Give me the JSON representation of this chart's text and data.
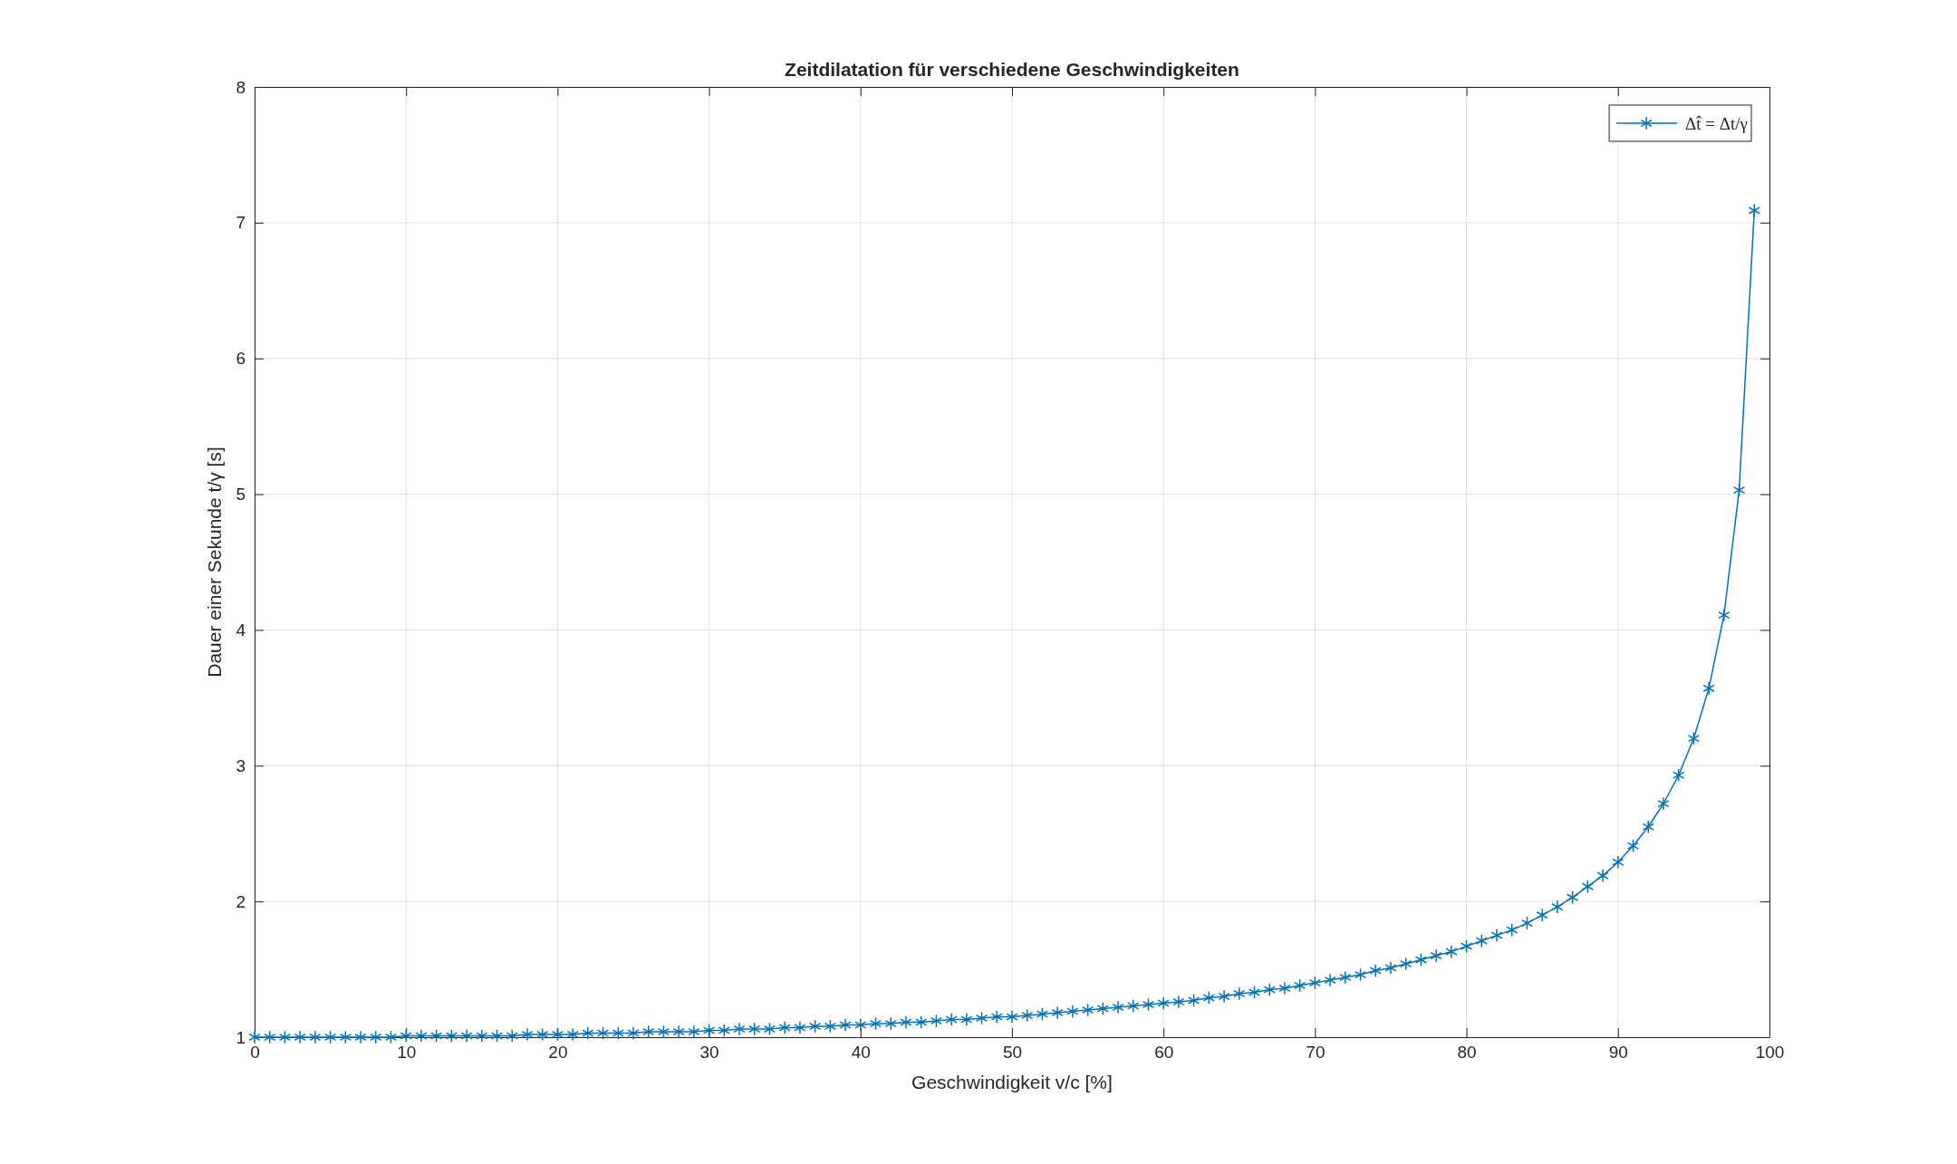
{
  "chart_data": {
    "type": "line",
    "title": "Zeitdilatation für verschiedene Geschwindigkeiten",
    "xlabel": "Geschwindigkeit v/c [%]",
    "ylabel": "Dauer einer Sekunde t/γ [s]",
    "x": [
      0,
      1,
      2,
      3,
      4,
      5,
      6,
      7,
      8,
      9,
      10,
      11,
      12,
      13,
      14,
      15,
      16,
      17,
      18,
      19,
      20,
      21,
      22,
      23,
      24,
      25,
      26,
      27,
      28,
      29,
      30,
      31,
      32,
      33,
      34,
      35,
      36,
      37,
      38,
      39,
      40,
      41,
      42,
      43,
      44,
      45,
      46,
      47,
      48,
      49,
      50,
      51,
      52,
      53,
      54,
      55,
      56,
      57,
      58,
      59,
      60,
      61,
      62,
      63,
      64,
      65,
      66,
      67,
      68,
      69,
      70,
      71,
      72,
      73,
      74,
      75,
      76,
      77,
      78,
      79,
      80,
      81,
      82,
      83,
      84,
      85,
      86,
      87,
      88,
      89,
      90,
      91,
      92,
      93,
      94,
      95,
      96,
      97,
      98,
      99
    ],
    "series": [
      {
        "name": "Δt̂ = Δt/γ",
        "color": "#0072bd",
        "values": [
          1.0,
          1.0,
          1.0,
          1.0,
          1.0,
          1.0,
          1.0,
          1.0,
          1.0,
          1.0,
          1.01,
          1.01,
          1.01,
          1.01,
          1.01,
          1.01,
          1.01,
          1.01,
          1.02,
          1.02,
          1.02,
          1.02,
          1.03,
          1.03,
          1.03,
          1.03,
          1.04,
          1.04,
          1.04,
          1.04,
          1.05,
          1.05,
          1.06,
          1.06,
          1.06,
          1.07,
          1.07,
          1.08,
          1.08,
          1.09,
          1.09,
          1.1,
          1.1,
          1.11,
          1.11,
          1.12,
          1.13,
          1.13,
          1.14,
          1.15,
          1.15,
          1.16,
          1.17,
          1.18,
          1.19,
          1.2,
          1.21,
          1.22,
          1.23,
          1.24,
          1.25,
          1.26,
          1.27,
          1.29,
          1.3,
          1.32,
          1.33,
          1.35,
          1.36,
          1.38,
          1.4,
          1.42,
          1.44,
          1.46,
          1.49,
          1.51,
          1.54,
          1.57,
          1.6,
          1.63,
          1.67,
          1.71,
          1.75,
          1.79,
          1.84,
          1.9,
          1.96,
          2.03,
          2.11,
          2.19,
          2.29,
          2.41,
          2.55,
          2.72,
          2.93,
          3.2,
          3.57,
          4.11,
          5.03,
          7.09
        ]
      }
    ],
    "xlim": [
      0,
      100
    ],
    "xticks": [
      0,
      10,
      20,
      30,
      40,
      50,
      60,
      70,
      80,
      90,
      100
    ],
    "ylim": [
      1,
      8
    ],
    "yticks": [
      1,
      2,
      3,
      4,
      5,
      6,
      7,
      8
    ],
    "grid": true,
    "legend": "top right",
    "marker": "cross",
    "line_style": "solid"
  }
}
